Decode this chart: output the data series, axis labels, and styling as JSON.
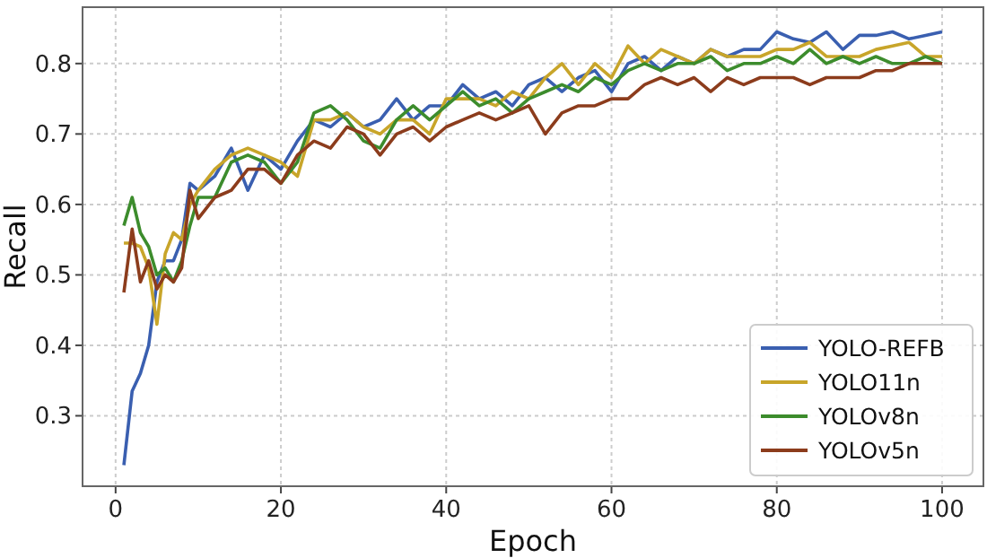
{
  "chart_data": {
    "type": "line",
    "xlabel": "Epoch",
    "ylabel": "Recall",
    "x": [
      1,
      2,
      3,
      4,
      5,
      6,
      7,
      8,
      9,
      10,
      12,
      14,
      16,
      18,
      20,
      22,
      24,
      26,
      28,
      30,
      32,
      34,
      36,
      38,
      40,
      42,
      44,
      46,
      48,
      50,
      52,
      54,
      56,
      58,
      60,
      62,
      64,
      66,
      68,
      70,
      72,
      74,
      76,
      78,
      80,
      82,
      84,
      86,
      88,
      90,
      92,
      94,
      96,
      98,
      100
    ],
    "xlim": [
      -4,
      105
    ],
    "xticks": [
      0,
      20,
      40,
      60,
      80,
      100
    ],
    "ylim": [
      0.2,
      0.88
    ],
    "yticks": [
      0.3,
      0.4,
      0.5,
      0.6,
      0.7,
      0.8
    ],
    "grid": true,
    "legend": "bottom right",
    "line_style": "solid",
    "series": [
      {
        "name": "YOLO-REFB",
        "color": "#3a5fb0",
        "values": [
          0.23,
          0.335,
          0.36,
          0.4,
          0.49,
          0.52,
          0.52,
          0.55,
          0.63,
          0.62,
          0.64,
          0.68,
          0.62,
          0.67,
          0.65,
          0.69,
          0.72,
          0.71,
          0.73,
          0.71,
          0.72,
          0.75,
          0.72,
          0.74,
          0.74,
          0.77,
          0.75,
          0.76,
          0.74,
          0.77,
          0.78,
          0.76,
          0.78,
          0.79,
          0.76,
          0.8,
          0.81,
          0.79,
          0.81,
          0.8,
          0.82,
          0.81,
          0.82,
          0.82,
          0.845,
          0.835,
          0.83,
          0.845,
          0.82,
          0.84,
          0.84,
          0.845,
          0.835,
          0.84,
          0.845
        ]
      },
      {
        "name": "YOLO11n",
        "color": "#c8a52a",
        "values": [
          0.545,
          0.545,
          0.54,
          0.51,
          0.43,
          0.53,
          0.56,
          0.55,
          0.6,
          0.62,
          0.65,
          0.67,
          0.68,
          0.67,
          0.66,
          0.64,
          0.72,
          0.72,
          0.73,
          0.71,
          0.7,
          0.72,
          0.72,
          0.7,
          0.75,
          0.75,
          0.75,
          0.74,
          0.76,
          0.75,
          0.78,
          0.8,
          0.77,
          0.8,
          0.78,
          0.825,
          0.8,
          0.82,
          0.81,
          0.8,
          0.82,
          0.81,
          0.81,
          0.81,
          0.82,
          0.82,
          0.83,
          0.81,
          0.81,
          0.81,
          0.82,
          0.825,
          0.83,
          0.81,
          0.81
        ]
      },
      {
        "name": "YOLOv8n",
        "color": "#3c8c2c",
        "values": [
          0.57,
          0.61,
          0.56,
          0.54,
          0.5,
          0.51,
          0.49,
          0.52,
          0.57,
          0.61,
          0.61,
          0.66,
          0.67,
          0.66,
          0.63,
          0.66,
          0.73,
          0.74,
          0.72,
          0.69,
          0.68,
          0.72,
          0.74,
          0.72,
          0.74,
          0.76,
          0.74,
          0.75,
          0.73,
          0.75,
          0.76,
          0.77,
          0.76,
          0.78,
          0.77,
          0.79,
          0.8,
          0.79,
          0.8,
          0.8,
          0.81,
          0.79,
          0.8,
          0.8,
          0.81,
          0.8,
          0.82,
          0.8,
          0.81,
          0.8,
          0.81,
          0.8,
          0.8,
          0.81,
          0.8
        ]
      },
      {
        "name": "YOLOv5n",
        "color": "#8c3c1c",
        "values": [
          0.475,
          0.565,
          0.49,
          0.52,
          0.48,
          0.5,
          0.49,
          0.51,
          0.62,
          0.58,
          0.61,
          0.62,
          0.65,
          0.65,
          0.63,
          0.67,
          0.69,
          0.68,
          0.71,
          0.7,
          0.67,
          0.7,
          0.71,
          0.69,
          0.71,
          0.72,
          0.73,
          0.72,
          0.73,
          0.74,
          0.7,
          0.73,
          0.74,
          0.74,
          0.75,
          0.75,
          0.77,
          0.78,
          0.77,
          0.78,
          0.76,
          0.78,
          0.77,
          0.78,
          0.78,
          0.78,
          0.77,
          0.78,
          0.78,
          0.78,
          0.79,
          0.79,
          0.8,
          0.8,
          0.8
        ]
      }
    ]
  }
}
